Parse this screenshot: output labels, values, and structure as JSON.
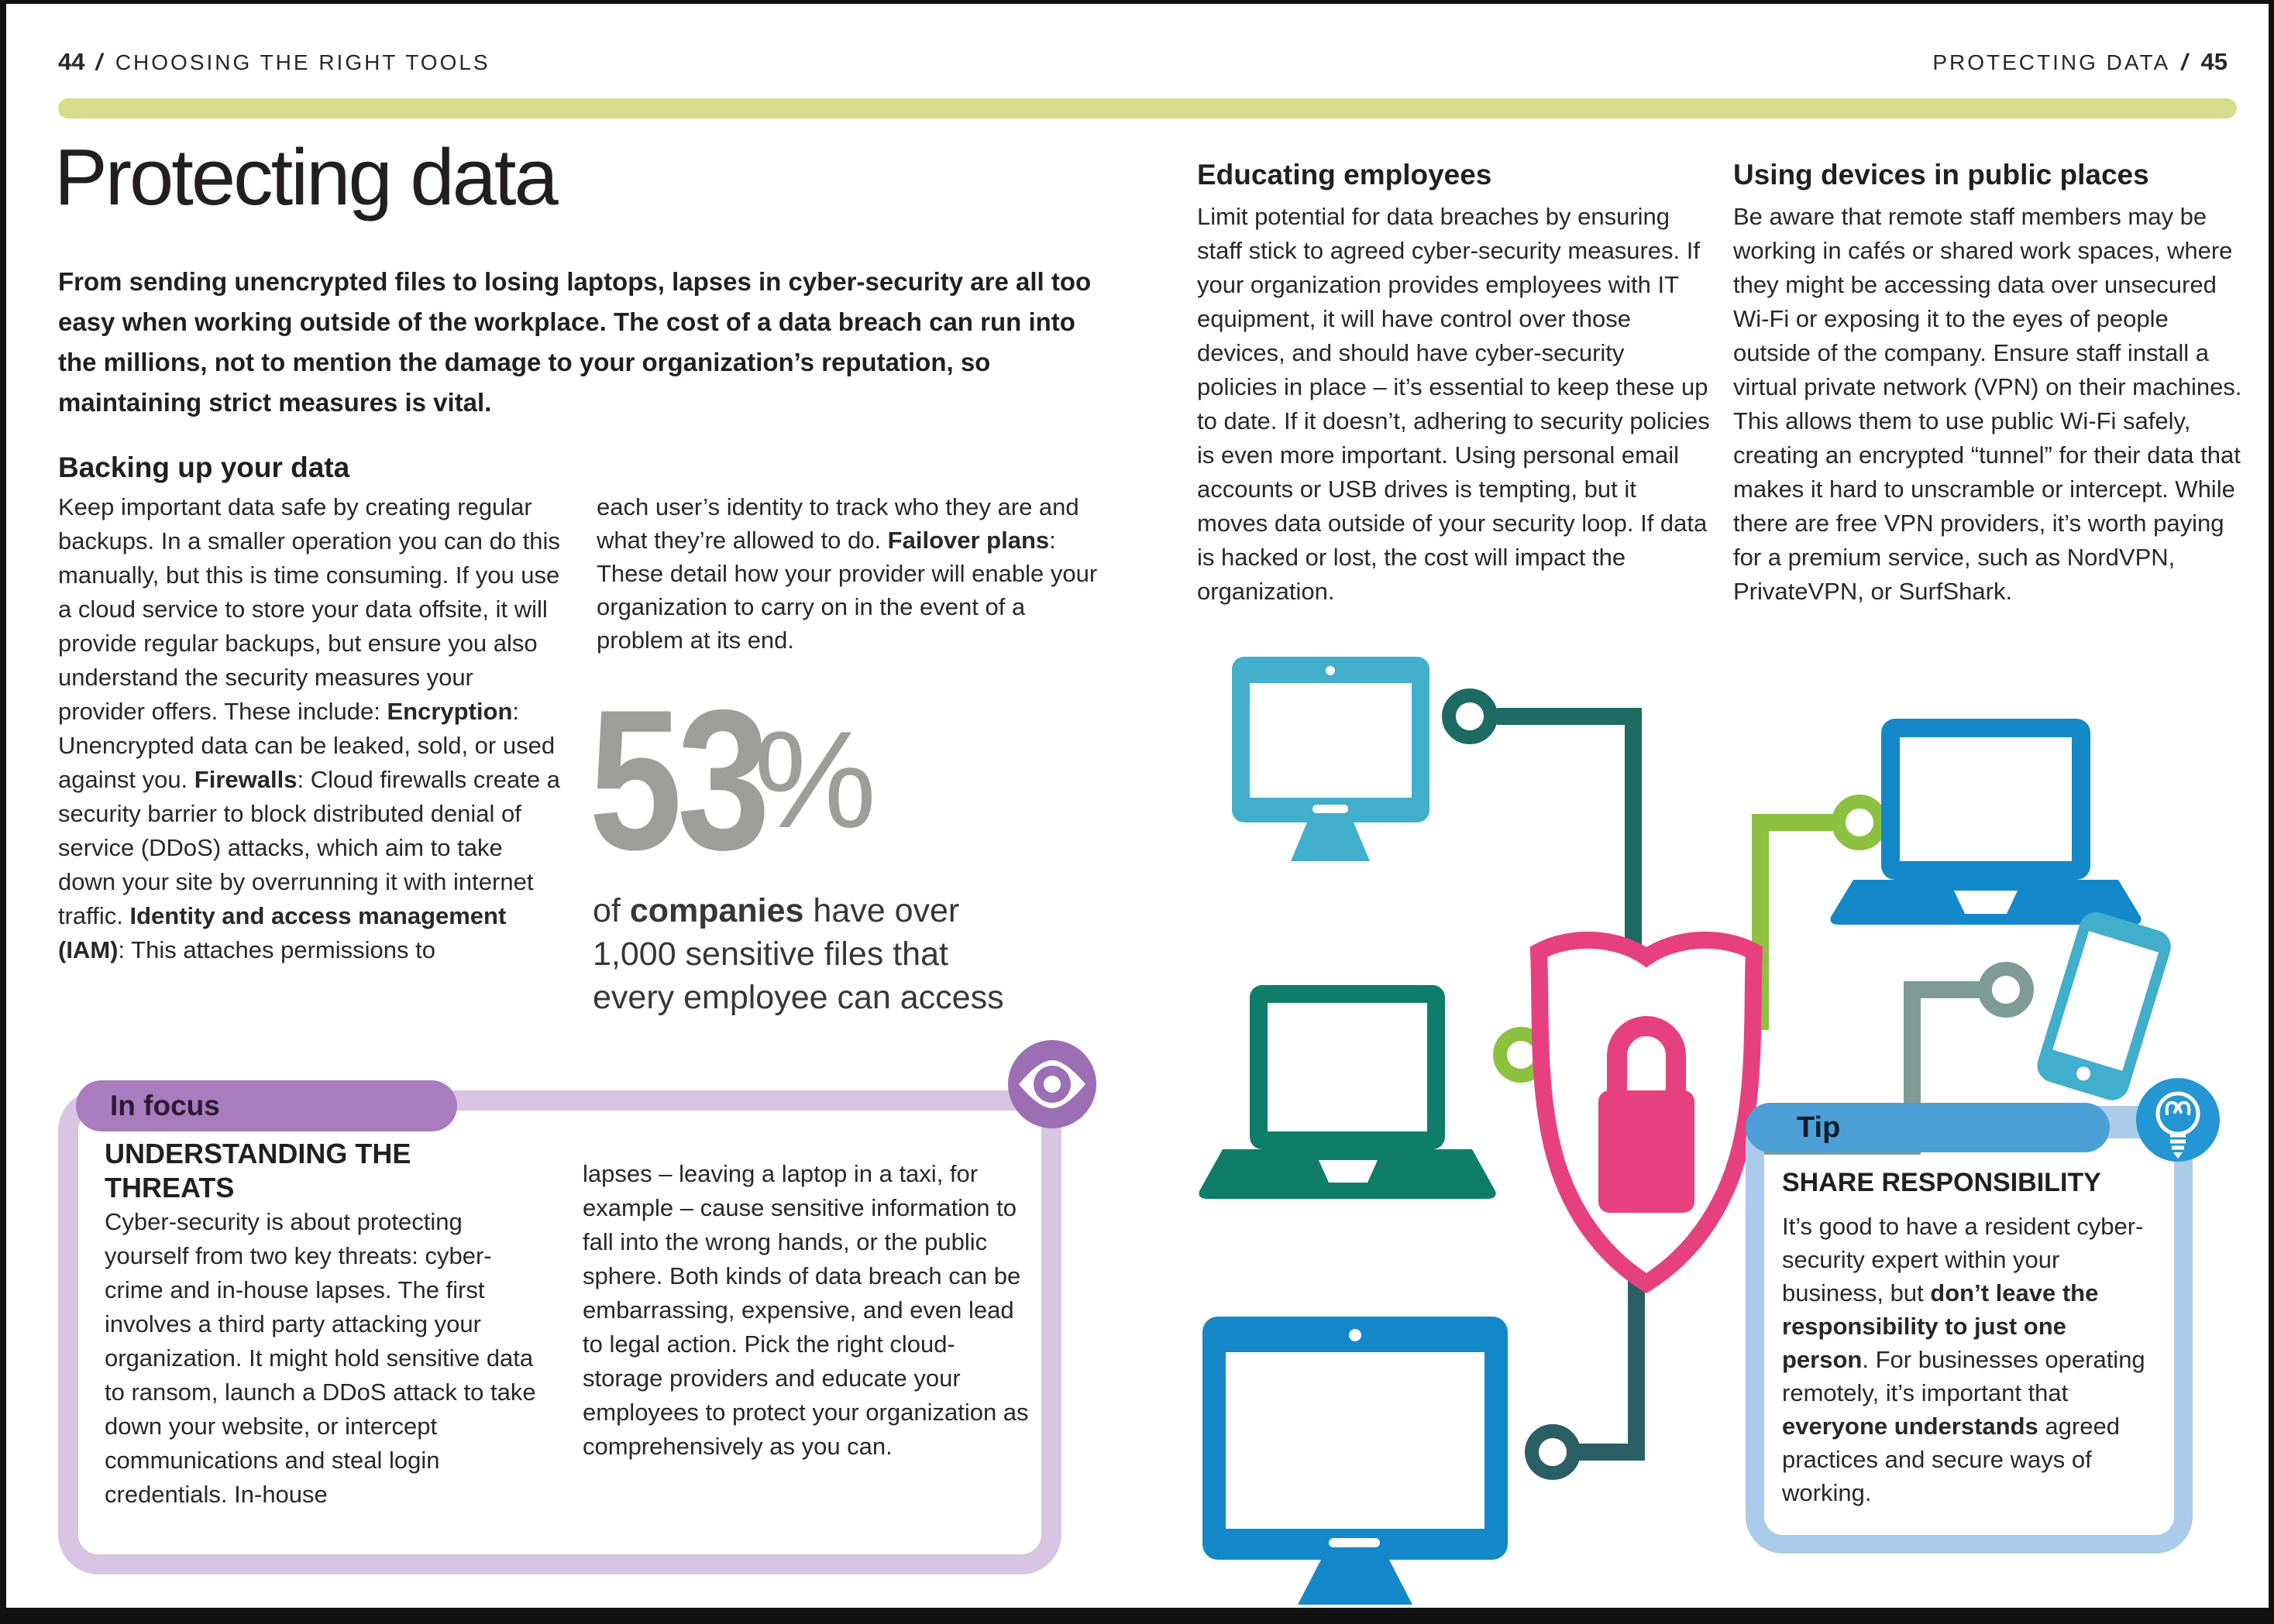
{
  "header": {
    "left_folio": "44",
    "left_running_head": "CHOOSING THE RIGHT TOOLS",
    "right_running_head": "PROTECTING DATA",
    "right_folio": "45",
    "slash": "/"
  },
  "page": {
    "title": "Protecting data",
    "intro": "From sending unencrypted files to losing laptops, lapses in cyber-security are all too easy when working outside of the workplace. The cost of a data breach can run into the millions, not to mention the damage to your organization’s reputation, so maintaining strict measures is vital."
  },
  "backing_up": {
    "heading": "Backing up your data",
    "col1_runs": [
      {
        "t": "Keep important data safe by creating regular backups. In a smaller operation you can do this manually, but this is time consuming. If you use a cloud service to store your data offsite, it will provide regular backups, but ensure you also understand the security measures your provider offers. These include: "
      },
      {
        "t": "Encryption",
        "b": true
      },
      {
        "t": ": Unencrypted data can be leaked, sold, or used against you. "
      },
      {
        "t": "Firewalls",
        "b": true
      },
      {
        "t": ": Cloud firewalls create a security barrier to block distributed denial of service (DDoS) attacks, which aim to take down your site by overrunning it with internet traffic. "
      },
      {
        "t": "Identity and access management (IAM)",
        "b": true
      },
      {
        "t": ": This attaches permissions to"
      }
    ],
    "col2_runs": [
      {
        "t": "each user’s identity to track who they are and what they’re allowed to do. "
      },
      {
        "t": "Failover plans",
        "b": true
      },
      {
        "t": ": These detail how your provider will enable your organization to carry on in the event of a problem at its end."
      }
    ]
  },
  "stat": {
    "value": "53",
    "percent": "%",
    "caption_runs": [
      {
        "t": "of "
      },
      {
        "t": "companies",
        "b": true
      },
      {
        "t": " have over 1,000 sensitive files that every employee can access"
      }
    ]
  },
  "in_focus": {
    "tab": "In focus",
    "heading": "UNDERSTANDING THE THREATS",
    "col1": "Cyber-security is about protecting yourself from two key threats: cyber-crime and in-house lapses. The first involves a third party attacking your organization. It might hold sensitive data to ransom, launch a DDoS attack to take down your website, or intercept communications and steal login credentials. In-house",
    "col2": "lapses – leaving a laptop in a taxi, for example – cause sensitive information to fall into the wrong hands, or the public sphere. Both kinds of data breach can be embarrassing, expensive, and even lead to legal action. Pick the right cloud-storage providers and educate your employees to protect your organization as comprehensively as you can."
  },
  "educating": {
    "heading": "Educating employees",
    "body": "Limit potential for data breaches by ensuring staff stick to agreed cyber-security measures. If your organization provides employees with IT equipment, it will have control over those devices, and should have cyber-security policies in place – it’s essential to keep these up to date. If it doesn’t, adhering to security policies is even more important. Using personal email accounts or USB drives is tempting, but it moves data outside of your security loop. If data is hacked or lost, the cost will impact the organization."
  },
  "devices_public": {
    "heading": "Using devices in public places",
    "body": "Be aware that remote staff members may be working in cafés or shared work spaces, where they might be accessing data over unsecured Wi-Fi or exposing it to the eyes of people outside of the company. Ensure staff install a virtual private network (VPN) on their machines. This allows them to use public Wi-Fi safely, creating an encrypted “tunnel” for their data that makes it hard to unscramble or intercept. While there are free VPN providers, it’s worth paying for a premium service, such as NordVPN, PrivateVPN, or SurfShark."
  },
  "tip": {
    "tab": "Tip",
    "heading": "SHARE RESPONSIBILITY",
    "body_runs": [
      {
        "t": "It’s good to have a resident cyber-security expert within your business, but "
      },
      {
        "t": "don’t leave the responsibility to just one person",
        "b": true
      },
      {
        "t": ". For businesses operating remotely, it’s important that "
      },
      {
        "t": "everyone understands",
        "b": true
      },
      {
        "t": " agreed practices and secure ways of working."
      }
    ]
  },
  "illustration": {
    "icons": [
      "monitor-icon",
      "laptop-icon",
      "laptop-icon",
      "monitor-icon",
      "smartphone-icon",
      "shield-lock-icon"
    ],
    "meaning": "devices connected to a central shield with padlock"
  },
  "colors": {
    "accent_bar": "#d9dc8a",
    "stat_gray": "#9d9d9c",
    "infocus_pill": "#a87cbe",
    "infocus_border": "#d7c5e3",
    "eye_badge": "#9c6fb5",
    "tip_pill": "#4d9fd7",
    "tip_border": "#aacbe9",
    "bulb_badge": "#2496d3",
    "shield_pink": "#e6417e",
    "device_light_blue": "#41aecb",
    "device_blue": "#1488c9",
    "device_teal": "#0e7e6b",
    "line_dark_teal": "#1d6b64",
    "line_green": "#8cc03f",
    "line_sage": "#7e9c95",
    "line_slate": "#2a5f66"
  }
}
